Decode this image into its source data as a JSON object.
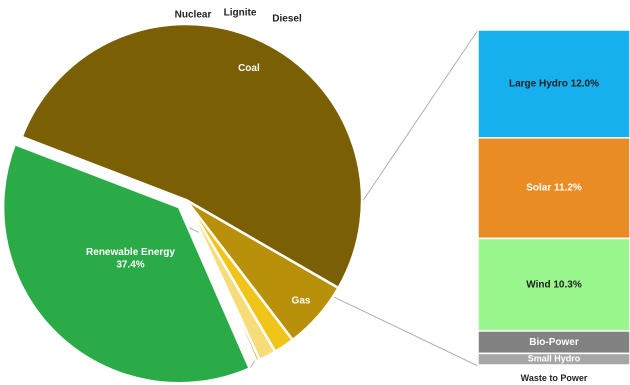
{
  "chart_data": {
    "type": "bar-of-pie",
    "pie": {
      "slices": [
        {
          "name": "Coal",
          "value": 52.5,
          "color": "#7a5f05",
          "label_color": "#ffffff",
          "label": "Coal",
          "exploded": false
        },
        {
          "name": "Gas",
          "value": 6.3,
          "color": "#b8900a",
          "label_color": "#ffffff",
          "label": "Gas",
          "exploded": false
        },
        {
          "name": "Nuclear",
          "value": 1.9,
          "color": "#f0c419",
          "label_color": "#222222",
          "label": "Nuclear",
          "exploded": false
        },
        {
          "name": "Lignite",
          "value": 1.6,
          "color": "#f7dc7a",
          "label_color": "#222222",
          "label": "Lignite",
          "exploded": false
        },
        {
          "name": "Diesel",
          "value": 0.3,
          "color": "#e8a020",
          "label_color": "#222222",
          "label": "Diesel",
          "exploded": false
        },
        {
          "name": "Renewable Energy",
          "value": 37.4,
          "color": "#2bab47",
          "label_color": "#ffffff",
          "label": "Renewable Energy",
          "value_label": "37.4%",
          "exploded": true
        }
      ]
    },
    "bar": {
      "segments": [
        {
          "name": "Large Hydro",
          "value": 12.0,
          "label": "Large Hydro 12.0%",
          "color": "#16b0ee",
          "label_color": "#222222"
        },
        {
          "name": "Solar",
          "value": 11.2,
          "label": "Solar 11.2%",
          "color": "#ea8c24",
          "label_color": "#ffffff"
        },
        {
          "name": "Wind",
          "value": 10.3,
          "label": "Wind 10.3%",
          "color": "#99f78e",
          "label_color": "#222222"
        },
        {
          "name": "Bio-Power",
          "value": 2.5,
          "label": "Bio-Power",
          "color": "#828282",
          "label_color": "#ffffff"
        },
        {
          "name": "Small Hydro",
          "value": 1.3,
          "label": "Small Hydro",
          "color": "#a6a6a6",
          "label_color": "#ffffff"
        },
        {
          "name": "Waste to Power",
          "value": 0.1,
          "label": "Waste to Power",
          "color": "#d0d0d0",
          "label_color": "#222222"
        }
      ]
    }
  }
}
